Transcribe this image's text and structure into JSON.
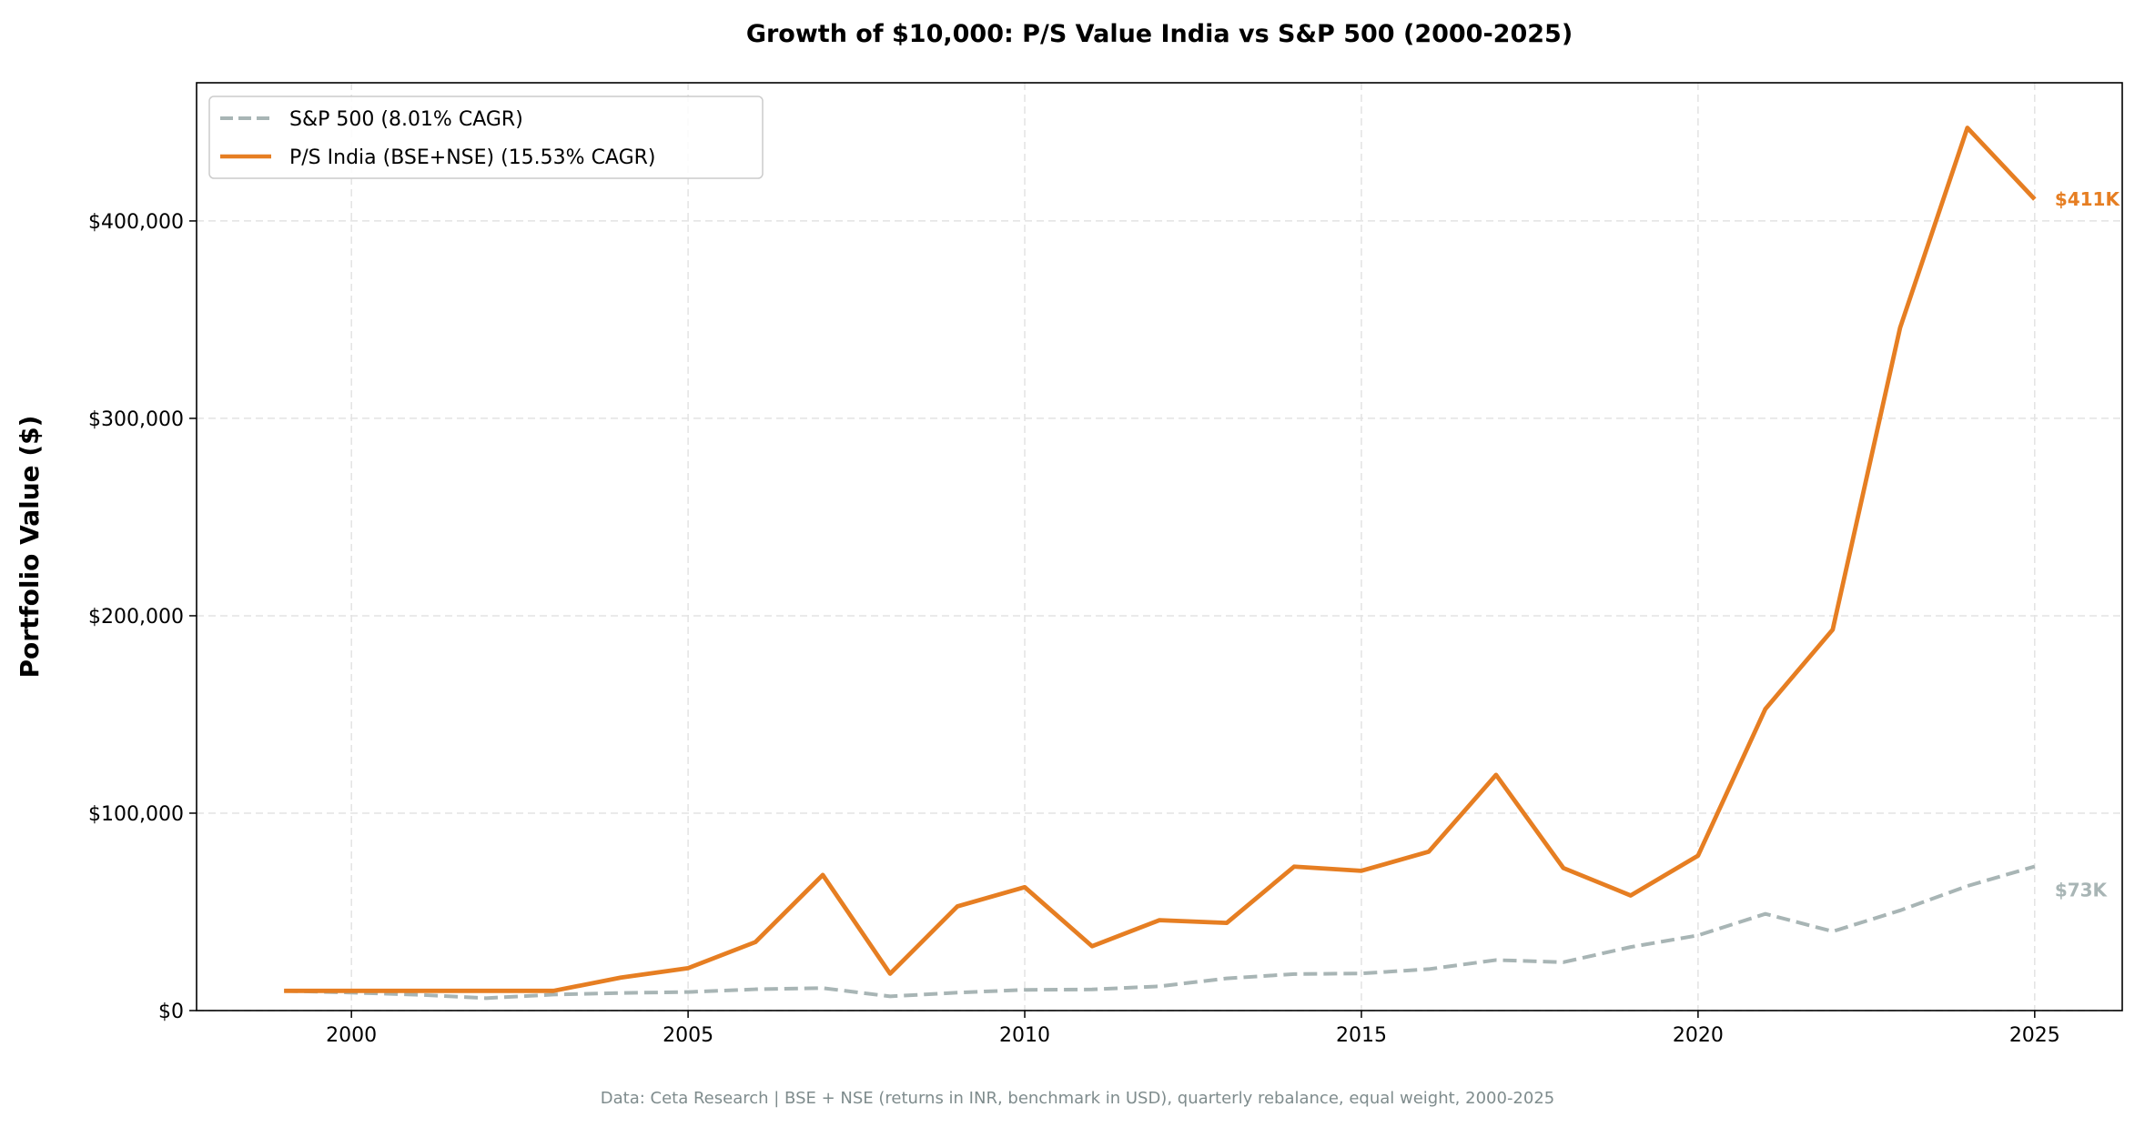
{
  "chart_data": {
    "type": "line",
    "title": "Growth of $10,000: P/S Value India vs S&P 500 (2000-2025)",
    "xlabel": "",
    "ylabel": "Portfolio Value ($)",
    "xlim": [
      1997.7,
      2026.3
    ],
    "ylim": [
      0,
      470000
    ],
    "x_ticks": [
      2000,
      2005,
      2010,
      2015,
      2020,
      2025
    ],
    "x_tick_labels": [
      "2000",
      "2005",
      "2010",
      "2015",
      "2020",
      "2025"
    ],
    "y_ticks": [
      0,
      100000,
      200000,
      300000,
      400000
    ],
    "y_tick_labels": [
      "$0",
      "$100,000",
      "$200,000",
      "$300,000",
      "$400,000"
    ],
    "grid": true,
    "legend_position": "top-left",
    "x": [
      1999,
      2000,
      2001,
      2002,
      2003,
      2004,
      2005,
      2006,
      2007,
      2008,
      2009,
      2010,
      2011,
      2012,
      2013,
      2014,
      2015,
      2016,
      2017,
      2018,
      2019,
      2020,
      2021,
      2022,
      2023,
      2024,
      2025
    ],
    "series": [
      {
        "name": "S&P 500 (8.01% CAGR)",
        "color": "#a8b5b5",
        "style": "dashed",
        "end_label": "$73K",
        "values": [
          10000,
          9100,
          8000,
          6300,
          8100,
          8900,
          9400,
          10800,
          11400,
          7200,
          9100,
          10500,
          10700,
          12300,
          16300,
          18500,
          18800,
          21000,
          25600,
          24500,
          32200,
          38100,
          49000,
          40100,
          50700,
          63100,
          73000
        ]
      },
      {
        "name": "P/S India (BSE+NSE) (15.53% CAGR)",
        "color": "#e67e22",
        "style": "solid",
        "end_label": "$411K",
        "values": [
          10000,
          10000,
          10000,
          10000,
          10000,
          16700,
          21500,
          34700,
          68700,
          18700,
          52800,
          62500,
          32600,
          45800,
          44400,
          72900,
          70800,
          80500,
          119400,
          72200,
          58300,
          78500,
          152800,
          193000,
          345800,
          447200,
          411000
        ]
      }
    ],
    "footnote": "Data: Ceta Research | BSE + NSE (returns in INR, benchmark in USD), quarterly rebalance, equal weight, 2000-2025"
  }
}
